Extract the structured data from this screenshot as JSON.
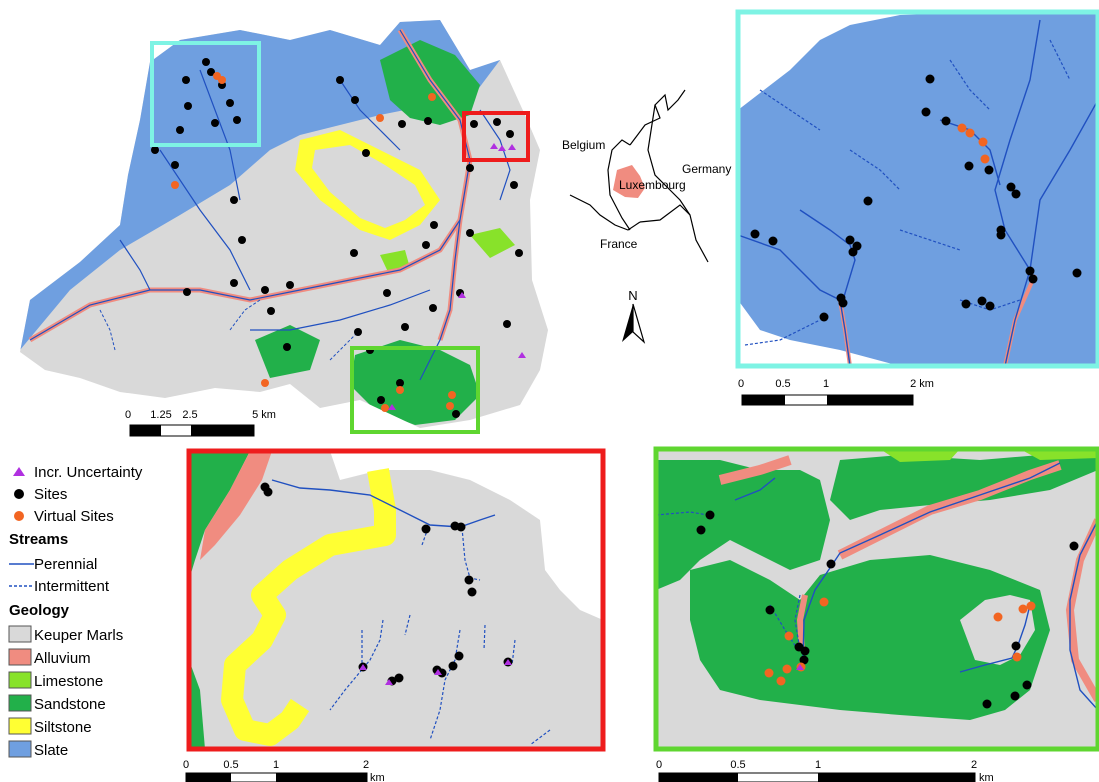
{
  "colors": {
    "slate": "#6f9fe0",
    "keuper": "#d9d9d9",
    "alluvium": "#f08c80",
    "limestone": "#88e22a",
    "sandstone": "#22b04a",
    "siltstone": "#ffff33",
    "stream": "#2050c0",
    "site": "#000000",
    "virtual": "#f26522",
    "uncertainty": "#b030e0",
    "frame_cyan": "#7ef3e4",
    "frame_red": "#ee1c1c",
    "frame_green": "#5fd630"
  },
  "main_map": {
    "scale": {
      "labels": [
        "0",
        "1.25",
        "2.5",
        "5 km"
      ]
    }
  },
  "locator": {
    "countries": [
      "Belgium",
      "Germany",
      "Luxembourg",
      "France"
    ],
    "north": "N"
  },
  "inset_cyan": {
    "scale": {
      "labels": [
        "0",
        "0.5",
        "1",
        "2 km"
      ]
    }
  },
  "inset_red": {
    "scale": {
      "labels": [
        "0",
        "0.5",
        "1",
        "2",
        "km"
      ]
    }
  },
  "inset_green": {
    "scale": {
      "labels": [
        "0",
        "0.5",
        "1",
        "2",
        "km"
      ]
    }
  },
  "legend": {
    "points": [
      {
        "label": "Incr. Uncertainty",
        "symbol": "triangle",
        "color": "#b030e0"
      },
      {
        "label": "Sites",
        "symbol": "circle",
        "color": "#000000"
      },
      {
        "label": "Virtual Sites",
        "symbol": "circle",
        "color": "#f26522"
      }
    ],
    "streams_title": "Streams",
    "streams": [
      {
        "label": "Perennial",
        "style": "solid"
      },
      {
        "label": "Intermittent",
        "style": "dashed"
      }
    ],
    "geology_title": "Geology",
    "geology": [
      {
        "label": "Keuper Marls",
        "color": "#d9d9d9"
      },
      {
        "label": "Alluvium",
        "color": "#f08c80"
      },
      {
        "label": "Limestone",
        "color": "#88e22a"
      },
      {
        "label": "Sandstone",
        "color": "#22b04a"
      },
      {
        "label": "Siltstone",
        "color": "#ffff33"
      },
      {
        "label": "Slate",
        "color": "#6f9fe0"
      }
    ]
  }
}
